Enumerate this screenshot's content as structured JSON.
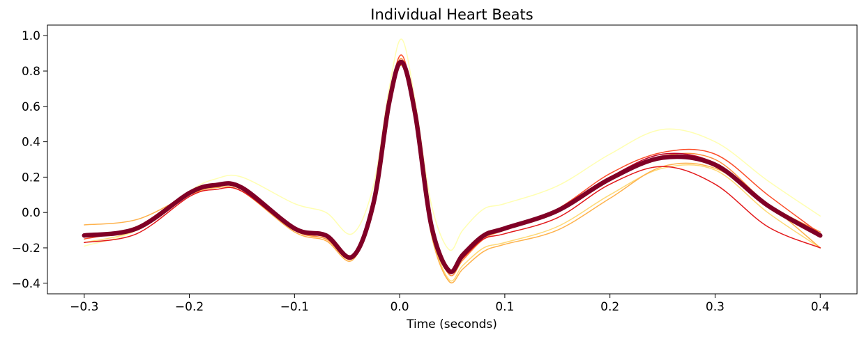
{
  "chart_data": {
    "type": "line",
    "title": "Individual Heart Beats",
    "xlabel": "Time (seconds)",
    "ylabel": "",
    "xlim": [
      -0.335,
      0.435
    ],
    "ylim": [
      -0.46,
      1.06
    ],
    "xticks": [
      -0.3,
      -0.2,
      -0.1,
      0.0,
      0.1,
      0.2,
      0.3,
      0.4
    ],
    "xtick_labels": [
      "−0.3",
      "−0.2",
      "−0.1",
      "0.0",
      "0.1",
      "0.2",
      "0.3",
      "0.4"
    ],
    "yticks": [
      -0.4,
      -0.2,
      0.0,
      0.2,
      0.4,
      0.6,
      0.8,
      1.0
    ],
    "ytick_labels": [
      "−0.4",
      "−0.2",
      "0.0",
      "0.2",
      "0.4",
      "0.6",
      "0.8",
      "1.0"
    ],
    "grid": false,
    "legend": false,
    "x": [
      -0.3,
      -0.25,
      -0.2,
      -0.175,
      -0.15,
      -0.1,
      -0.07,
      -0.045,
      -0.025,
      -0.01,
      0.002,
      0.015,
      0.03,
      0.047,
      0.06,
      0.08,
      0.1,
      0.15,
      0.2,
      0.25,
      0.3,
      0.35,
      0.4
    ],
    "series": [
      {
        "color": "#ffffb2",
        "width": 1.5,
        "values": [
          -0.19,
          -0.1,
          0.12,
          0.19,
          0.2,
          0.05,
          0.0,
          -0.12,
          0.15,
          0.7,
          0.98,
          0.62,
          0.05,
          -0.21,
          -0.1,
          0.02,
          0.05,
          0.15,
          0.33,
          0.47,
          0.4,
          0.18,
          -0.02
        ]
      },
      {
        "color": "#fed976",
        "width": 1.5,
        "values": [
          -0.17,
          -0.1,
          0.1,
          0.15,
          0.14,
          -0.1,
          -0.15,
          -0.25,
          0.05,
          0.6,
          0.84,
          0.5,
          -0.1,
          -0.38,
          -0.3,
          -0.2,
          -0.17,
          -0.08,
          0.1,
          0.25,
          0.24,
          0.0,
          -0.2
        ]
      },
      {
        "color": "#feb24c",
        "width": 1.5,
        "values": [
          -0.07,
          -0.04,
          0.1,
          0.14,
          0.12,
          -0.11,
          -0.16,
          -0.27,
          0.04,
          0.6,
          0.83,
          0.5,
          -0.12,
          -0.39,
          -0.32,
          -0.22,
          -0.18,
          -0.1,
          0.08,
          0.26,
          0.25,
          0.05,
          -0.2
        ]
      },
      {
        "color": "#fd8d3c",
        "width": 1.5,
        "values": [
          -0.13,
          -0.08,
          0.12,
          0.16,
          0.14,
          -0.1,
          -0.15,
          -0.26,
          0.05,
          0.62,
          0.87,
          0.55,
          -0.08,
          -0.35,
          -0.27,
          -0.15,
          -0.1,
          0.0,
          0.18,
          0.32,
          0.3,
          0.05,
          -0.11
        ]
      },
      {
        "color": "#fc4e2a",
        "width": 1.5,
        "values": [
          -0.15,
          -0.08,
          0.12,
          0.16,
          0.14,
          -0.09,
          -0.14,
          -0.26,
          0.05,
          0.63,
          0.89,
          0.55,
          -0.07,
          -0.33,
          -0.25,
          -0.13,
          -0.1,
          0.02,
          0.22,
          0.34,
          0.33,
          0.1,
          -0.12
        ]
      },
      {
        "color": "#e31a1c",
        "width": 1.5,
        "values": [
          -0.17,
          -0.12,
          0.09,
          0.13,
          0.12,
          -0.1,
          -0.14,
          -0.25,
          0.05,
          0.62,
          0.86,
          0.54,
          -0.08,
          -0.34,
          -0.26,
          -0.15,
          -0.12,
          -0.03,
          0.16,
          0.26,
          0.16,
          -0.08,
          -0.2
        ]
      },
      {
        "color": "#bd0026",
        "width": 1.5,
        "values": [
          -0.13,
          -0.09,
          0.11,
          0.15,
          0.14,
          -0.09,
          -0.13,
          -0.25,
          0.05,
          0.62,
          0.85,
          0.55,
          -0.07,
          -0.33,
          -0.24,
          -0.13,
          -0.09,
          0.01,
          0.2,
          0.33,
          0.28,
          0.05,
          -0.13
        ]
      },
      {
        "color": "#800026",
        "width": 6.5,
        "values": [
          -0.13,
          -0.09,
          0.11,
          0.155,
          0.14,
          -0.09,
          -0.13,
          -0.25,
          0.05,
          0.62,
          0.85,
          0.55,
          -0.07,
          -0.33,
          -0.24,
          -0.13,
          -0.09,
          0.01,
          0.19,
          0.31,
          0.27,
          0.04,
          -0.13
        ]
      }
    ]
  }
}
